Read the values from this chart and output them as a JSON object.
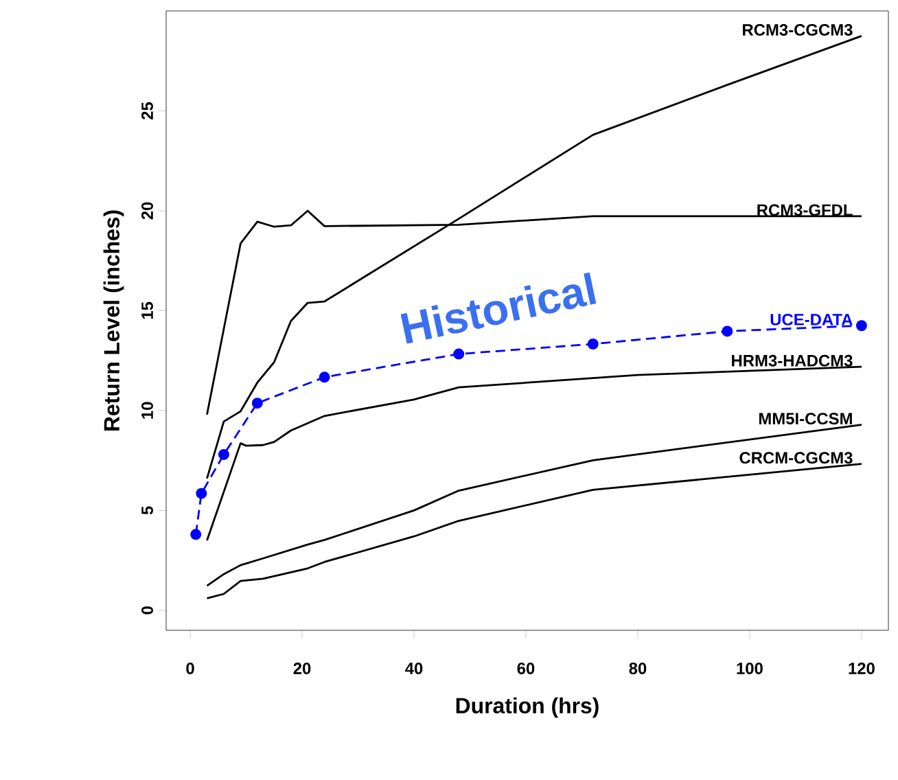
{
  "chart_data": {
    "type": "line",
    "xlabel": "Duration (hrs)",
    "ylabel": "Return Level (inches)",
    "xlim": [
      -4.3,
      124.8
    ],
    "ylim": [
      -1,
      30
    ],
    "xticks": [
      0,
      20,
      40,
      60,
      80,
      100,
      120
    ],
    "yticks": [
      0,
      5,
      10,
      15,
      20,
      25
    ],
    "annotations": [
      "Historical"
    ],
    "series": [
      {
        "name": "RCM3-CGCM3",
        "color": "#000000",
        "line_style": "solid",
        "marker": "none",
        "x": [
          3,
          6,
          9,
          12,
          15,
          18,
          21,
          24,
          48,
          72,
          96,
          120
        ],
        "values": [
          6.6,
          9.45,
          9.96,
          11.4,
          12.42,
          14.48,
          15.39,
          15.46,
          19.6,
          23.8,
          26.3,
          28.75
        ]
      },
      {
        "name": "RCM3-GFDL",
        "color": "#000000",
        "line_style": "solid",
        "marker": "none",
        "x": [
          3,
          9,
          12,
          15,
          18,
          21,
          24,
          48,
          72,
          120
        ],
        "values": [
          9.8,
          18.36,
          19.45,
          19.2,
          19.27,
          20.0,
          19.23,
          19.3,
          19.73,
          19.73
        ]
      },
      {
        "name": "UCE-DATA",
        "color": "#0000ff",
        "line_style": "dashed",
        "marker": "circle",
        "x": [
          1,
          2,
          6,
          12,
          24,
          48,
          72,
          96,
          120
        ],
        "values": [
          3.8,
          5.85,
          7.8,
          10.37,
          11.67,
          12.83,
          13.33,
          13.97,
          14.25
        ]
      },
      {
        "name": "HRM3-HADCM3",
        "color": "#000000",
        "line_style": "solid",
        "marker": "none",
        "x": [
          3,
          9,
          10,
          13,
          15,
          18,
          24,
          40,
          48,
          80,
          120
        ],
        "values": [
          3.5,
          8.36,
          8.24,
          8.27,
          8.43,
          9.0,
          9.73,
          10.55,
          11.16,
          11.78,
          12.19
        ]
      },
      {
        "name": "MM5I-CCSM",
        "color": "#000000",
        "line_style": "solid",
        "marker": "none",
        "x": [
          3,
          6,
          9,
          13,
          21,
          24,
          40,
          48,
          72,
          120
        ],
        "values": [
          1.23,
          1.81,
          2.26,
          2.6,
          3.29,
          3.52,
          5.0,
          5.99,
          7.51,
          9.29
        ]
      },
      {
        "name": "CRCM-CGCM3",
        "color": "#000000",
        "line_style": "solid",
        "marker": "none",
        "x": [
          3,
          6,
          9,
          13,
          21,
          24,
          40,
          48,
          72,
          120
        ],
        "values": [
          0.6,
          0.82,
          1.47,
          1.58,
          2.1,
          2.42,
          3.7,
          4.48,
          6.03,
          7.33
        ]
      }
    ]
  }
}
